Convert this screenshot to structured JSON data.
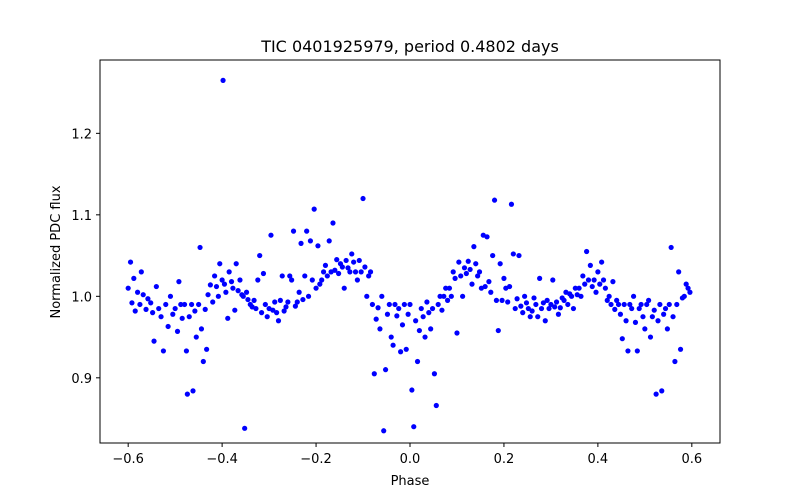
{
  "chart_data": {
    "type": "scatter",
    "title": "TIC 0401925979, period 0.4802 days",
    "xlabel": "Phase",
    "ylabel": "Normalized PDC flux",
    "xlim": [
      -0.66,
      0.66
    ],
    "ylim": [
      0.82,
      1.29
    ],
    "xticks": [
      -0.6,
      -0.4,
      -0.2,
      0.0,
      0.2,
      0.4,
      0.6
    ],
    "xtick_labels": [
      "−0.6",
      "−0.4",
      "−0.2",
      "0.0",
      "0.2",
      "0.4",
      "0.6"
    ],
    "yticks": [
      0.9,
      1.0,
      1.1,
      1.2
    ],
    "ytick_labels": [
      "0.9",
      "1.0",
      "1.1",
      "1.2"
    ],
    "grid": false,
    "marker_color": "#0000ff",
    "series": [
      {
        "points": [
          [
            -0.6,
            1.01
          ],
          [
            -0.595,
            1.042
          ],
          [
            -0.592,
            0.992
          ],
          [
            -0.588,
            1.022
          ],
          [
            -0.585,
            0.982
          ],
          [
            -0.58,
            1.005
          ],
          [
            -0.575,
            0.99
          ],
          [
            -0.572,
            1.03
          ],
          [
            -0.568,
            1.002
          ],
          [
            -0.562,
            0.984
          ],
          [
            -0.558,
            0.997
          ],
          [
            -0.552,
            0.992
          ],
          [
            -0.548,
            0.98
          ],
          [
            -0.545,
            0.945
          ],
          [
            -0.54,
            1.012
          ],
          [
            -0.535,
            0.985
          ],
          [
            -0.53,
            0.975
          ],
          [
            -0.525,
            0.933
          ],
          [
            -0.52,
            0.99
          ],
          [
            -0.515,
            0.963
          ],
          [
            -0.51,
            1.0
          ],
          [
            -0.505,
            0.978
          ],
          [
            -0.5,
            0.985
          ],
          [
            -0.495,
            0.957
          ],
          [
            -0.492,
            1.018
          ],
          [
            -0.488,
            0.99
          ],
          [
            -0.485,
            0.973
          ],
          [
            -0.48,
            0.99
          ],
          [
            -0.476,
            0.933
          ],
          [
            -0.474,
            0.88
          ],
          [
            -0.47,
            0.975
          ],
          [
            -0.465,
            0.99
          ],
          [
            -0.462,
            0.884
          ],
          [
            -0.458,
            0.982
          ],
          [
            -0.455,
            0.95
          ],
          [
            -0.45,
            0.99
          ],
          [
            -0.447,
            1.06
          ],
          [
            -0.444,
            0.96
          ],
          [
            -0.44,
            0.92
          ],
          [
            -0.436,
            0.984
          ],
          [
            -0.433,
            0.935
          ],
          [
            -0.43,
            1.002
          ],
          [
            -0.425,
            1.014
          ],
          [
            -0.42,
            0.993
          ],
          [
            -0.416,
            1.025
          ],
          [
            -0.412,
            1.012
          ],
          [
            -0.408,
            1.0
          ],
          [
            -0.405,
            1.04
          ],
          [
            -0.4,
            1.02
          ],
          [
            -0.398,
            1.265
          ],
          [
            -0.395,
            1.015
          ],
          [
            -0.392,
            1.005
          ],
          [
            -0.388,
            0.973
          ],
          [
            -0.385,
            1.03
          ],
          [
            -0.38,
            1.018
          ],
          [
            -0.377,
            1.01
          ],
          [
            -0.373,
            0.983
          ],
          [
            -0.37,
            1.04
          ],
          [
            -0.366,
            1.007
          ],
          [
            -0.362,
            1.02
          ],
          [
            -0.358,
            1.002
          ],
          [
            -0.355,
            1.0
          ],
          [
            -0.352,
            0.838
          ],
          [
            -0.348,
            1.005
          ],
          [
            -0.345,
            0.996
          ],
          [
            -0.34,
            0.99
          ],
          [
            -0.336,
            0.987
          ],
          [
            -0.332,
            0.995
          ],
          [
            -0.328,
            0.985
          ],
          [
            -0.324,
            1.02
          ],
          [
            -0.32,
            1.05
          ],
          [
            -0.316,
            0.98
          ],
          [
            -0.312,
            1.028
          ],
          [
            -0.308,
            0.99
          ],
          [
            -0.304,
            0.975
          ],
          [
            -0.3,
            0.985
          ],
          [
            -0.296,
            1.075
          ],
          [
            -0.292,
            0.983
          ],
          [
            -0.288,
            0.993
          ],
          [
            -0.284,
            0.98
          ],
          [
            -0.28,
            0.97
          ],
          [
            -0.276,
            0.995
          ],
          [
            -0.272,
            1.025
          ],
          [
            -0.268,
            0.982
          ],
          [
            -0.264,
            0.987
          ],
          [
            -0.26,
            0.993
          ],
          [
            -0.256,
            1.025
          ],
          [
            -0.252,
            1.02
          ],
          [
            -0.248,
            1.08
          ],
          [
            -0.244,
            0.988
          ],
          [
            -0.24,
            0.993
          ],
          [
            -0.236,
            1.005
          ],
          [
            -0.232,
            1.065
          ],
          [
            -0.228,
            0.996
          ],
          [
            -0.224,
            1.025
          ],
          [
            -0.22,
            1.08
          ],
          [
            -0.216,
            1.0
          ],
          [
            -0.212,
            1.068
          ],
          [
            -0.208,
            1.02
          ],
          [
            -0.204,
            1.107
          ],
          [
            -0.2,
            1.01
          ],
          [
            -0.196,
            1.062
          ],
          [
            -0.192,
            1.015
          ],
          [
            -0.188,
            1.02
          ],
          [
            -0.184,
            1.03
          ],
          [
            -0.18,
            1.038
          ],
          [
            -0.176,
            1.025
          ],
          [
            -0.172,
            1.068
          ],
          [
            -0.168,
            1.03
          ],
          [
            -0.164,
            1.09
          ],
          [
            -0.16,
            1.032
          ],
          [
            -0.156,
            1.045
          ],
          [
            -0.152,
            1.028
          ],
          [
            -0.148,
            1.04
          ],
          [
            -0.144,
            1.036
          ],
          [
            -0.14,
            1.01
          ],
          [
            -0.136,
            1.044
          ],
          [
            -0.132,
            1.035
          ],
          [
            -0.128,
            1.03
          ],
          [
            -0.124,
            1.052
          ],
          [
            -0.12,
            1.042
          ],
          [
            -0.116,
            1.03
          ],
          [
            -0.112,
            1.02
          ],
          [
            -0.108,
            1.044
          ],
          [
            -0.104,
            1.03
          ],
          [
            -0.1,
            1.12
          ],
          [
            -0.096,
            1.036
          ],
          [
            -0.092,
            1.0
          ],
          [
            -0.088,
            1.025
          ],
          [
            -0.084,
            1.03
          ],
          [
            -0.08,
            0.99
          ],
          [
            -0.076,
            0.905
          ],
          [
            -0.072,
            0.972
          ],
          [
            -0.068,
            0.986
          ],
          [
            -0.064,
            0.96
          ],
          [
            -0.06,
            1.0
          ],
          [
            -0.056,
            0.835
          ],
          [
            -0.052,
            0.91
          ],
          [
            -0.048,
            0.978
          ],
          [
            -0.044,
            0.99
          ],
          [
            -0.04,
            0.95
          ],
          [
            -0.036,
            0.94
          ],
          [
            -0.032,
            0.99
          ],
          [
            -0.028,
            0.976
          ],
          [
            -0.024,
            0.985
          ],
          [
            -0.02,
            0.932
          ],
          [
            -0.016,
            0.965
          ],
          [
            -0.012,
            0.99
          ],
          [
            -0.008,
            0.935
          ],
          [
            -0.004,
            0.978
          ],
          [
            0.0,
            0.99
          ],
          [
            0.004,
            0.885
          ],
          [
            0.008,
            0.84
          ],
          [
            0.012,
            0.97
          ],
          [
            0.016,
            0.92
          ],
          [
            0.02,
            0.958
          ],
          [
            0.024,
            0.985
          ],
          [
            0.028,
            0.975
          ],
          [
            0.032,
            0.95
          ],
          [
            0.036,
            0.993
          ],
          [
            0.04,
            0.98
          ],
          [
            0.044,
            0.96
          ],
          [
            0.048,
            0.985
          ],
          [
            0.052,
            0.905
          ],
          [
            0.056,
            0.866
          ],
          [
            0.06,
            0.99
          ],
          [
            0.064,
            1.0
          ],
          [
            0.068,
            0.983
          ],
          [
            0.072,
            1.0
          ],
          [
            0.076,
            1.01
          ],
          [
            0.08,
            0.995
          ],
          [
            0.084,
            1.01
          ],
          [
            0.088,
            1.0
          ],
          [
            0.092,
            1.03
          ],
          [
            0.096,
            1.022
          ],
          [
            0.1,
            0.955
          ],
          [
            0.104,
            1.042
          ],
          [
            0.108,
            1.025
          ],
          [
            0.112,
            1.0
          ],
          [
            0.116,
            1.035
          ],
          [
            0.12,
            1.028
          ],
          [
            0.124,
            1.043
          ],
          [
            0.128,
            1.033
          ],
          [
            0.132,
            1.015
          ],
          [
            0.136,
            1.061
          ],
          [
            0.14,
            1.04
          ],
          [
            0.144,
            1.025
          ],
          [
            0.148,
            1.03
          ],
          [
            0.152,
            1.01
          ],
          [
            0.156,
            1.075
          ],
          [
            0.16,
            1.012
          ],
          [
            0.164,
            1.073
          ],
          [
            0.168,
            1.018
          ],
          [
            0.172,
            1.005
          ],
          [
            0.176,
            1.05
          ],
          [
            0.18,
            1.118
          ],
          [
            0.184,
            0.995
          ],
          [
            0.188,
            0.958
          ],
          [
            0.192,
            1.04
          ],
          [
            0.196,
            0.995
          ],
          [
            0.2,
            1.022
          ],
          [
            0.204,
            1.01
          ],
          [
            0.208,
            0.993
          ],
          [
            0.212,
            1.012
          ],
          [
            0.216,
            1.113
          ],
          [
            0.22,
            1.052
          ],
          [
            0.224,
            0.985
          ],
          [
            0.228,
            0.997
          ],
          [
            0.232,
            1.05
          ],
          [
            0.236,
            0.988
          ],
          [
            0.24,
            0.98
          ],
          [
            0.244,
            1.0
          ],
          [
            0.248,
            0.992
          ],
          [
            0.252,
            0.985
          ],
          [
            0.256,
            0.975
          ],
          [
            0.26,
            0.982
          ],
          [
            0.264,
            0.998
          ],
          [
            0.268,
            0.99
          ],
          [
            0.272,
            0.975
          ],
          [
            0.276,
            1.022
          ],
          [
            0.28,
            0.985
          ],
          [
            0.284,
            0.992
          ],
          [
            0.288,
            0.97
          ],
          [
            0.292,
            0.995
          ],
          [
            0.296,
            0.985
          ],
          [
            0.3,
            0.99
          ],
          [
            0.304,
            1.02
          ],
          [
            0.308,
            0.987
          ],
          [
            0.312,
            0.993
          ],
          [
            0.316,
            0.978
          ],
          [
            0.32,
            0.986
          ],
          [
            0.324,
            0.998
          ],
          [
            0.328,
            0.995
          ],
          [
            0.332,
            1.005
          ],
          [
            0.336,
            0.99
          ],
          [
            0.34,
            1.003
          ],
          [
            0.344,
            1.0
          ],
          [
            0.348,
            0.985
          ],
          [
            0.352,
            1.01
          ],
          [
            0.356,
            1.002
          ],
          [
            0.36,
            1.01
          ],
          [
            0.364,
            1.0
          ],
          [
            0.368,
            1.025
          ],
          [
            0.372,
            1.015
          ],
          [
            0.376,
            1.055
          ],
          [
            0.38,
            1.02
          ],
          [
            0.384,
            1.038
          ],
          [
            0.388,
            1.012
          ],
          [
            0.392,
            1.02
          ],
          [
            0.396,
            1.005
          ],
          [
            0.4,
            1.03
          ],
          [
            0.404,
            1.015
          ],
          [
            0.408,
            1.042
          ],
          [
            0.412,
            1.02
          ],
          [
            0.416,
            1.01
          ],
          [
            0.42,
            0.995
          ],
          [
            0.424,
            1.0
          ],
          [
            0.428,
            0.99
          ],
          [
            0.432,
            1.018
          ],
          [
            0.436,
            0.984
          ],
          [
            0.44,
            0.995
          ],
          [
            0.444,
            0.99
          ],
          [
            0.448,
            0.978
          ],
          [
            0.452,
            0.948
          ],
          [
            0.456,
            0.99
          ],
          [
            0.46,
            0.97
          ],
          [
            0.464,
            0.933
          ],
          [
            0.468,
            0.99
          ],
          [
            0.472,
            0.985
          ],
          [
            0.476,
            1.0
          ],
          [
            0.48,
            0.968
          ],
          [
            0.484,
            0.933
          ],
          [
            0.488,
            0.985
          ],
          [
            0.492,
            0.99
          ],
          [
            0.496,
            0.975
          ],
          [
            0.5,
            0.96
          ],
          [
            0.504,
            0.99
          ],
          [
            0.508,
            0.995
          ],
          [
            0.512,
            0.95
          ],
          [
            0.516,
            0.975
          ],
          [
            0.52,
            0.983
          ],
          [
            0.524,
            0.88
          ],
          [
            0.528,
            0.97
          ],
          [
            0.532,
            0.99
          ],
          [
            0.536,
            0.884
          ],
          [
            0.54,
            0.978
          ],
          [
            0.544,
            0.985
          ],
          [
            0.548,
            0.96
          ],
          [
            0.552,
            0.99
          ],
          [
            0.556,
            1.06
          ],
          [
            0.56,
            0.975
          ],
          [
            0.564,
            0.92
          ],
          [
            0.568,
            0.99
          ],
          [
            0.572,
            1.03
          ],
          [
            0.576,
            0.935
          ],
          [
            0.58,
            0.998
          ],
          [
            0.584,
            1.0
          ],
          [
            0.588,
            1.015
          ],
          [
            0.592,
            1.01
          ],
          [
            0.596,
            1.005
          ]
        ]
      }
    ]
  }
}
